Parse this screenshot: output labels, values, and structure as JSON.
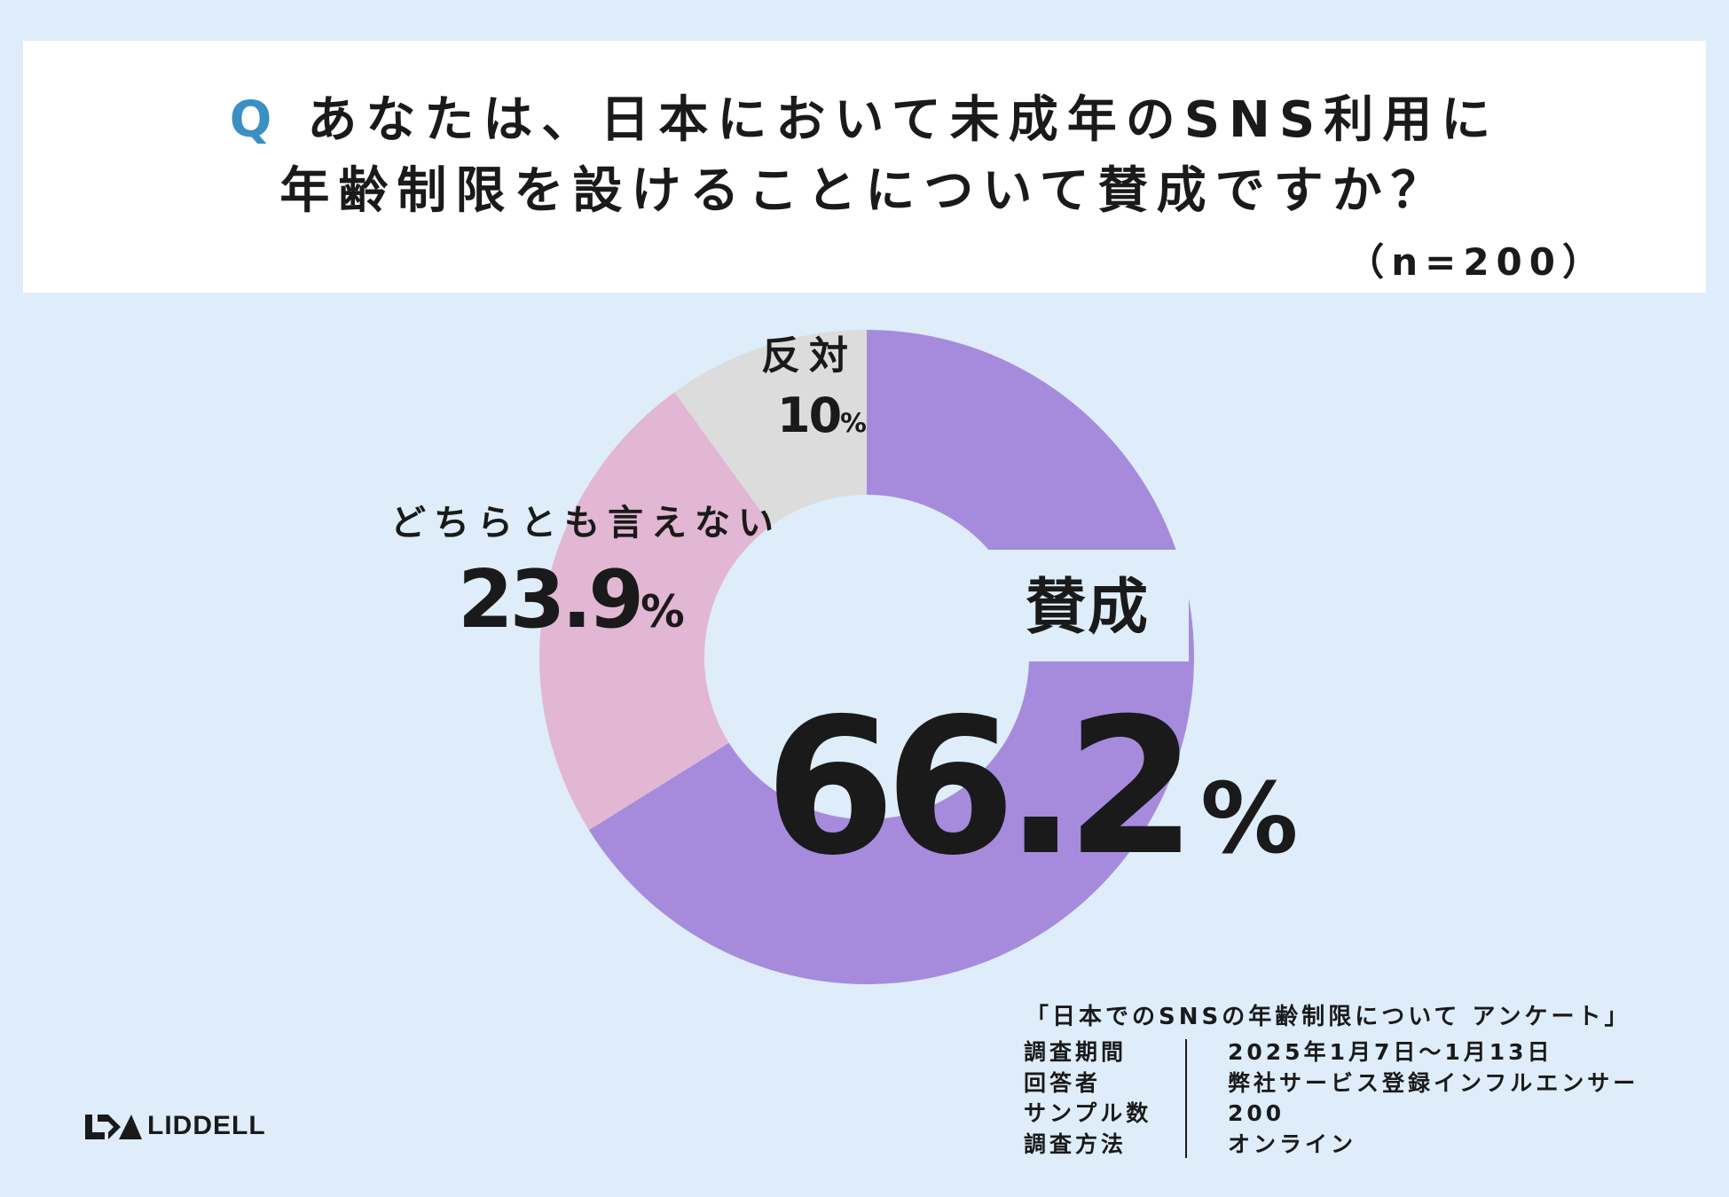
{
  "question": {
    "mark": "Q",
    "line1": "あなたは、日本において未成年のSNS利用に",
    "line2": "年齢制限を設けることについて賛成ですか？",
    "sample": "（n=200）"
  },
  "chart_data": {
    "type": "pie",
    "donut": true,
    "categories": [
      "賛成",
      "どちらとも言えない",
      "反対"
    ],
    "values": [
      66.2,
      23.9,
      10
    ],
    "unit": "%",
    "colors": [
      "#a68bdd",
      "#e2b7d3",
      "#dcdcdc"
    ],
    "value_labels": [
      "66.2",
      "23.9",
      "10"
    ],
    "percent_sign": "%"
  },
  "survey": {
    "title": "「日本でのSNSの年齢制限について アンケート」",
    "rows": [
      {
        "label": "調査期間",
        "value": "2025年1月7日〜1月13日"
      },
      {
        "label": "回答者",
        "value": "弊社サービス登録インフルエンサー"
      },
      {
        "label": "サンプル数",
        "value": "200"
      },
      {
        "label": "調査方法",
        "value": "オンライン"
      }
    ]
  },
  "logo": {
    "text": "LIDDELL"
  }
}
